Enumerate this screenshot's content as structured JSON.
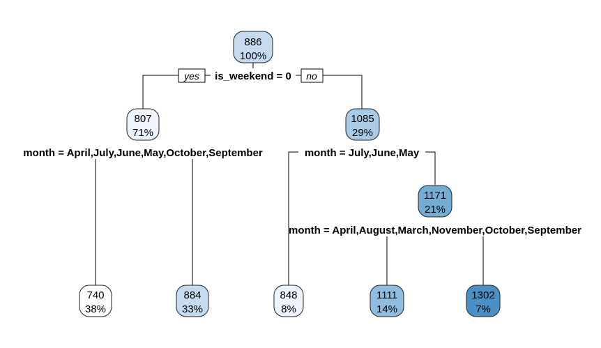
{
  "tree": {
    "root": {
      "value": "886",
      "percent": "100%",
      "color": "#c6dbef"
    },
    "root_split": {
      "label": "is_weekend = 0",
      "yes_label": "yes",
      "no_label": "no"
    },
    "left": {
      "value": "807",
      "percent": "71%",
      "color": "#eef4fb"
    },
    "left_split": {
      "label": "month = April,July,June,May,October,September"
    },
    "right": {
      "value": "1085",
      "percent": "29%",
      "color": "#a9cbe6"
    },
    "right_split": {
      "label": "month = July,June,May"
    },
    "right_right": {
      "value": "1171",
      "percent": "21%",
      "color": "#74add4"
    },
    "right_right_split": {
      "label": "month = April,August,March,November,October,September"
    },
    "leaves": [
      {
        "value": "740",
        "percent": "38%",
        "color": "#ffffff"
      },
      {
        "value": "884",
        "percent": "33%",
        "color": "#c6dbef"
      },
      {
        "value": "848",
        "percent": "8%",
        "color": "#eef4fb"
      },
      {
        "value": "1111",
        "percent": "14%",
        "color": "#8fbcdf"
      },
      {
        "value": "1302",
        "percent": "7%",
        "color": "#4a90c4"
      }
    ]
  }
}
